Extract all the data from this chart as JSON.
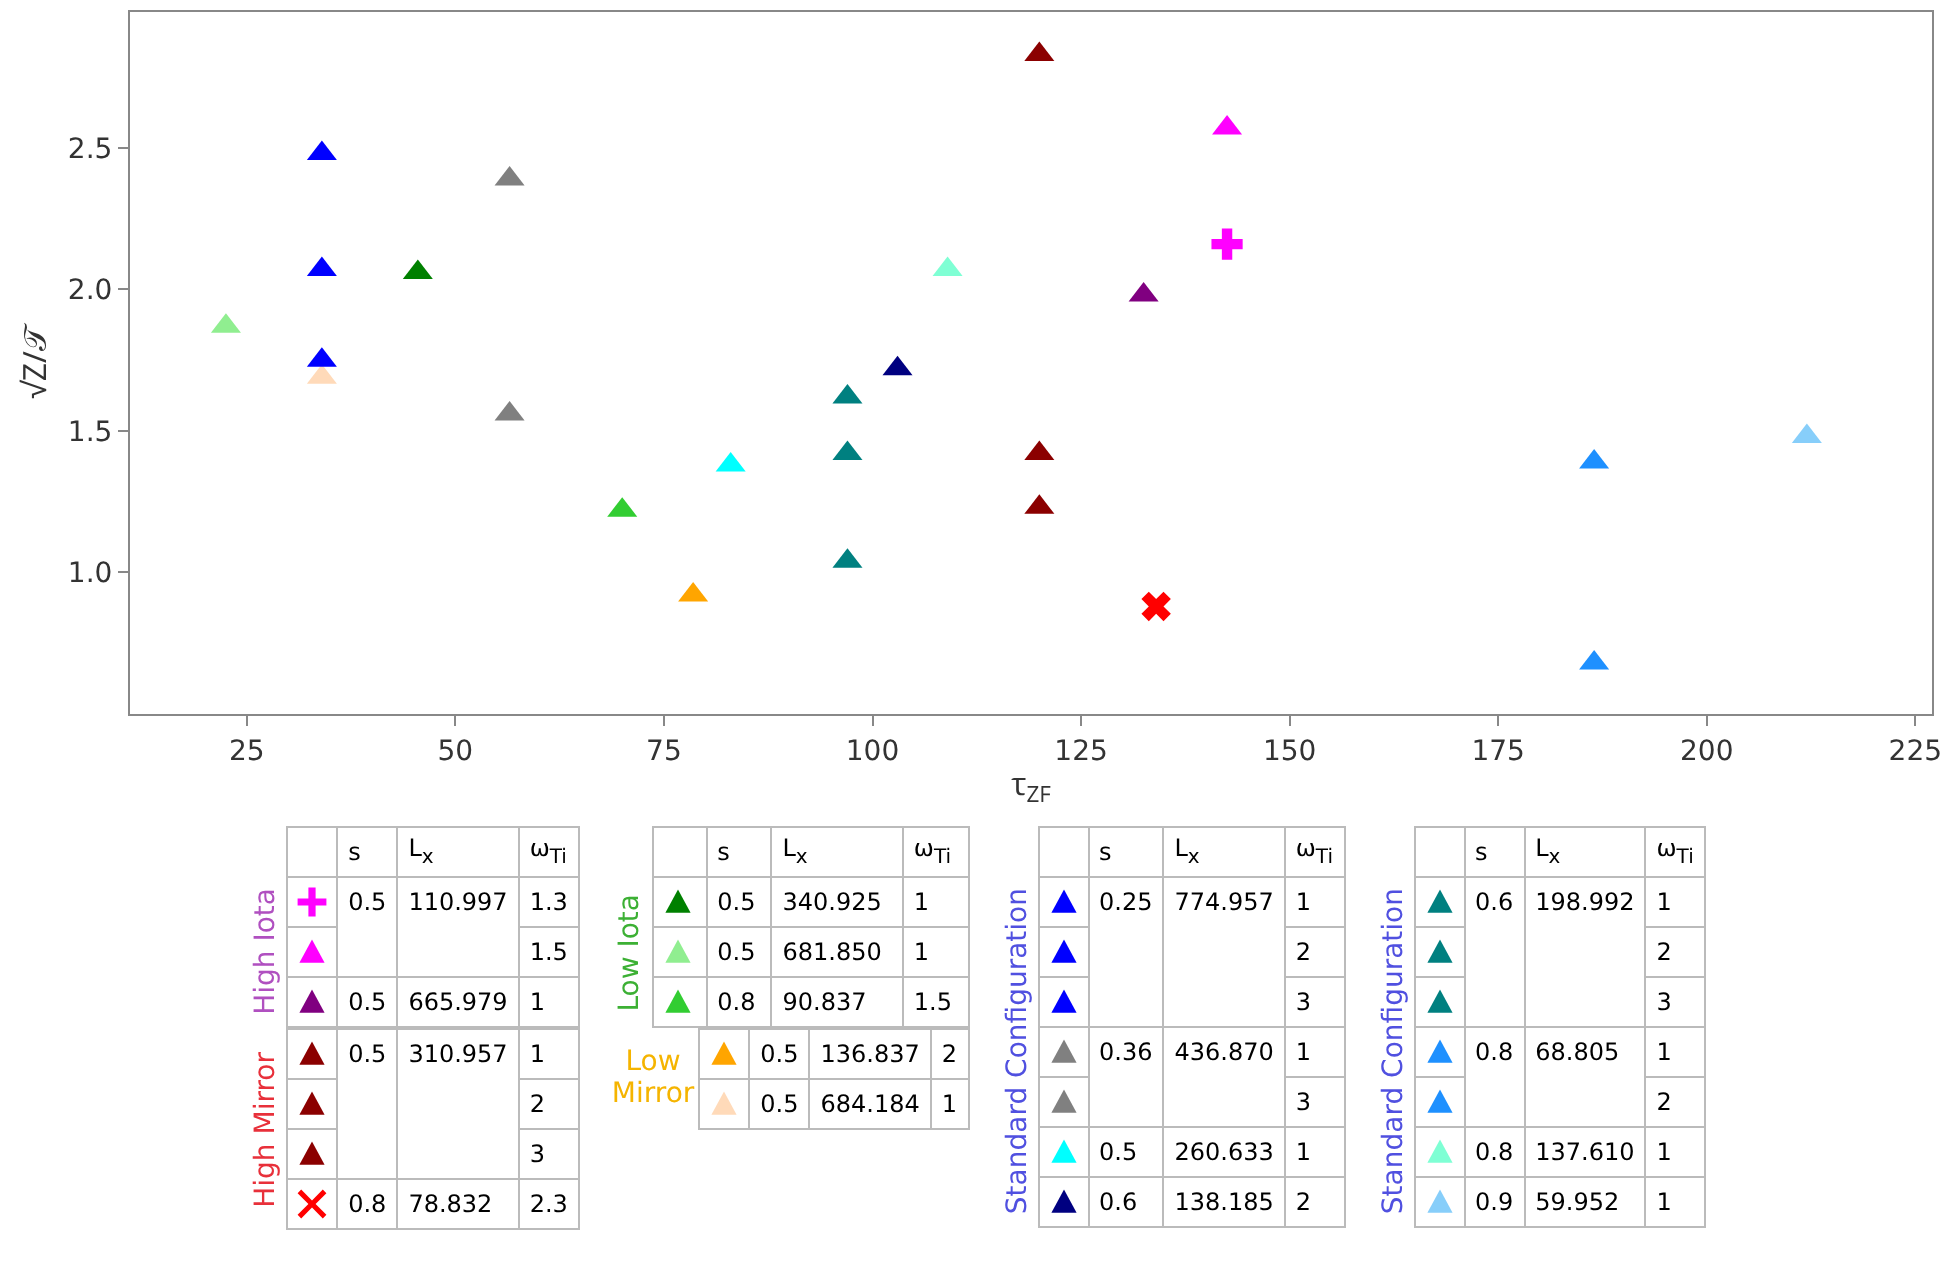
{
  "chart_data": [
    {
      "type": "scatter",
      "xlabel": "τ$_{ZF}$",
      "ylabel": "√Z/𝒯",
      "xlim": [
        11,
        227
      ],
      "ylim": [
        0.5,
        2.98
      ],
      "xticks": [
        25,
        50,
        75,
        100,
        125,
        150,
        175,
        200,
        225
      ],
      "yticks": [
        {
          "value": 1,
          "label": "1.0"
        },
        {
          "value": 1.5,
          "label": "1.5"
        },
        {
          "value": 2,
          "label": "2.0"
        },
        {
          "value": 2.5,
          "label": "2.5"
        }
      ],
      "series": [
        {
          "color": "#ff00ff",
          "marker": "cross",
          "x": [
            142.5
          ],
          "values": [
            2.16
          ]
        },
        {
          "color": "#ff00ff",
          "marker": "triangle",
          "x": [
            142.5
          ],
          "values": [
            2.57
          ]
        },
        {
          "color": "#800080",
          "marker": "triangle",
          "x": [
            132.5
          ],
          "values": [
            1.98
          ]
        },
        {
          "color": "#8b0000",
          "marker": "triangle",
          "x": [
            120
          ],
          "values": [
            2.83
          ]
        },
        {
          "color": "#8b0000",
          "marker": "triangle",
          "x": [
            120
          ],
          "values": [
            1.42
          ]
        },
        {
          "color": "#8b0000",
          "marker": "triangle",
          "x": [
            120
          ],
          "values": [
            1.23
          ]
        },
        {
          "color": "#ff0000",
          "x": [
            134
          ],
          "values": [
            0.88
          ]
        },
        {
          "color": "#008000",
          "marker": "triangle",
          "x": [
            45.5
          ],
          "values": [
            2.06
          ]
        },
        {
          "color": "#90ee90",
          "marker": "triangle",
          "x": [
            22.5
          ],
          "values": [
            1.87
          ]
        },
        {
          "color": "#32cd32",
          "marker": "triangle",
          "x": [
            70
          ],
          "values": [
            1.22
          ]
        },
        {
          "color": "#ffa500",
          "marker": "triangle",
          "x": [
            78.5
          ],
          "values": [
            0.92
          ]
        },
        {
          "color": "#ffdab9",
          "marker": "triangle",
          "x": [
            34
          ],
          "values": [
            1.69
          ]
        },
        {
          "color": "#0000ff",
          "marker": "triangle",
          "x": [
            34
          ],
          "values": [
            2.48
          ]
        },
        {
          "color": "#0000ff",
          "marker": "triangle",
          "x": [
            34
          ],
          "values": [
            2.07
          ]
        },
        {
          "color": "#0000ff",
          "marker": "triangle",
          "x": [
            34
          ],
          "values": [
            1.75
          ]
        },
        {
          "color": "#808080",
          "marker": "triangle",
          "x": [
            56.5
          ],
          "values": [
            2.39
          ]
        },
        {
          "color": "#808080",
          "marker": "triangle",
          "x": [
            56.5
          ],
          "values": [
            1.56
          ]
        },
        {
          "color": "#00ffff",
          "marker": "triangle",
          "x": [
            83
          ],
          "values": [
            1.38
          ]
        },
        {
          "color": "#000080",
          "marker": "triangle",
          "x": [
            103
          ],
          "values": [
            1.72
          ]
        },
        {
          "color": "#008080",
          "marker": "triangle",
          "x": [
            97
          ],
          "values": [
            1.62
          ]
        },
        {
          "color": "#008080",
          "marker": "triangle",
          "x": [
            97
          ],
          "values": [
            1.42
          ]
        },
        {
          "color": "#008080",
          "marker": "triangle",
          "x": [
            97
          ],
          "values": [
            1.04
          ]
        },
        {
          "color": "#1e90ff",
          "marker": "triangle",
          "x": [
            186.5
          ],
          "values": [
            1.39
          ]
        },
        {
          "color": "#1e90ff",
          "marker": "triangle",
          "x": [
            186.5
          ],
          "values": [
            0.68
          ]
        },
        {
          "color": "#7fffd4",
          "marker": "triangle",
          "x": [
            109
          ],
          "values": [
            2.07
          ]
        },
        {
          "color": "#87cefa",
          "marker": "triangle",
          "x": [
            212
          ],
          "values": [
            1.48
          ]
        }
      ]
    },
    {
      "type": "other",
      "categories": [
        "s",
        "L$_{x}$",
        "ω$_{Ti}$"
      ],
      "annotations": [
        "High Iota"
      ],
      "color": "#b050c0",
      "cell_labels": [
        [
          "0.5",
          "110.997",
          "1.3"
        ],
        [
          null,
          null,
          "1.5"
        ],
        [
          "0.5",
          "665.979",
          "1"
        ]
      ]
    },
    {
      "type": "other",
      "annotations": [
        "High Mirror"
      ],
      "color": "#e8303a",
      "cell_labels": [
        [
          "0.5",
          "310.957",
          "1"
        ],
        [
          null,
          null,
          "2"
        ],
        [
          null,
          null,
          "3"
        ],
        [
          "0.8",
          "78.832",
          "2.3"
        ]
      ]
    },
    {
      "type": "other",
      "categories": [
        "s",
        "L$_{x}$",
        "ω$_{Ti}$"
      ],
      "annotations": [
        "Low Iota"
      ],
      "color": "#3cb034",
      "cell_labels": [
        [
          "0.5",
          "340.925",
          "1"
        ],
        [
          "0.5",
          "681.850",
          "1"
        ],
        [
          "0.8",
          "90.837",
          "1.5"
        ]
      ]
    },
    {
      "type": "other",
      "annotations": [
        "Low Mirror"
      ],
      "color": "#f5b400",
      "cell_labels": [
        [
          "0.5",
          "136.837",
          "2"
        ],
        [
          "0.5",
          "684.184",
          "1"
        ]
      ]
    },
    {
      "type": "other",
      "categories": [
        "s",
        "L$_{x}$",
        "ω$_{Ti}$"
      ],
      "annotations": [
        "Standard Configuration"
      ],
      "color": "#5050e0",
      "cell_labels": [
        [
          "0.25",
          "774.957",
          "1"
        ],
        [
          null,
          null,
          "2"
        ],
        [
          null,
          null,
          "3"
        ],
        [
          "0.36",
          "436.870",
          "1"
        ],
        [
          null,
          null,
          "3"
        ],
        [
          "0.5",
          "260.633",
          "1"
        ],
        [
          "0.6",
          "138.185",
          "2"
        ]
      ]
    },
    {
      "type": "other",
      "categories": [
        "s",
        "L$_{x}$",
        "ω$_{Ti}$"
      ],
      "annotations": [
        "Standard Configuration"
      ],
      "color": "#5050e0",
      "cell_labels": [
        [
          "0.6",
          "198.992",
          "1"
        ],
        [
          null,
          null,
          "2"
        ],
        [
          null,
          null,
          "3"
        ],
        [
          "0.8",
          "68.805",
          "1"
        ],
        [
          null,
          null,
          "2"
        ],
        [
          "0.8",
          "137.610",
          "1"
        ],
        [
          "0.9",
          "59.952",
          "1"
        ]
      ]
    }
  ]
}
